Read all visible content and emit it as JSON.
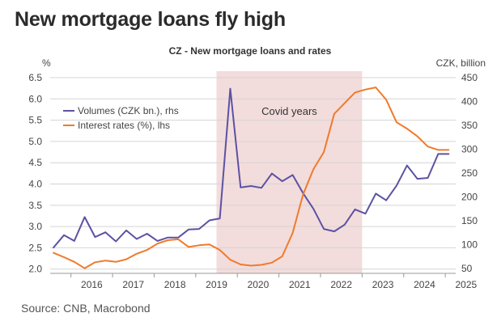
{
  "headline": "New mortgage loans fly high",
  "source": "Source: CNB, Macrobond",
  "chart_data": {
    "type": "line",
    "title": "CZ - New mortgage loans and rates",
    "left_unit": "%",
    "right_unit": "CZK, billion",
    "y_left_lim": [
      1.9,
      6.5
    ],
    "y_left_ticks": [
      "2.0",
      "2.5",
      "3.0",
      "3.5",
      "4.0",
      "4.5",
      "5.0",
      "5.5",
      "6.0",
      "6.5"
    ],
    "y_right_lim": [
      40,
      450
    ],
    "y_right_ticks": [
      "50",
      "100",
      "150",
      "200",
      "250",
      "300",
      "350",
      "400",
      "450"
    ],
    "x_lim": [
      2015.5,
      2025.25
    ],
    "x_ticks": [
      "2016",
      "2017",
      "2018",
      "2019",
      "2020",
      "2021",
      "2022",
      "2023",
      "2024",
      "2025"
    ],
    "grid": "horizontal",
    "legend_position": "top-left",
    "shaded_region": {
      "label": "Covid years",
      "from": 2019.5,
      "to": 2023.0,
      "color": "#f3dcdc"
    },
    "series": [
      {
        "name": "Volumes (CZK bn.), rhs",
        "axis": "right",
        "color": "#5b52a3",
        "x": [
          2015.58,
          2015.83,
          2016.08,
          2016.33,
          2016.58,
          2016.83,
          2017.08,
          2017.33,
          2017.58,
          2017.83,
          2018.08,
          2018.33,
          2018.58,
          2018.83,
          2019.08,
          2019.33,
          2019.58,
          2019.83,
          2020.08,
          2020.33,
          2020.58,
          2020.83,
          2021.08,
          2021.33,
          2021.58,
          2021.83,
          2022.08,
          2022.33,
          2022.58,
          2022.83,
          2023.08,
          2023.33,
          2023.58,
          2023.83,
          2024.08,
          2024.33,
          2024.58,
          2024.83,
          2025.08
        ],
        "values": [
          94,
          120,
          108,
          158,
          116,
          126,
          107,
          130,
          112,
          123,
          108,
          115,
          115,
          132,
          133,
          151,
          155,
          427,
          220,
          223,
          219,
          249,
          233,
          246,
          208,
          175,
          133,
          128,
          142,
          174,
          165,
          207,
          193,
          224,
          266,
          238,
          240,
          290,
          290
        ],
        "values_note": ""
      },
      {
        "name": "Interest rates (%), lhs",
        "axis": "left",
        "color": "#f07a2a",
        "x": [
          2015.58,
          2015.83,
          2016.08,
          2016.33,
          2016.58,
          2016.83,
          2017.08,
          2017.33,
          2017.58,
          2017.83,
          2018.08,
          2018.33,
          2018.58,
          2018.83,
          2019.08,
          2019.33,
          2019.58,
          2019.83,
          2020.08,
          2020.33,
          2020.58,
          2020.83,
          2021.08,
          2021.33,
          2021.58,
          2021.83,
          2022.08,
          2022.33,
          2022.58,
          2022.83,
          2023.08,
          2023.33,
          2023.58,
          2023.83,
          2024.08,
          2024.33,
          2024.58,
          2024.83,
          2025.08
        ],
        "values": [
          2.38,
          2.28,
          2.17,
          2.02,
          2.16,
          2.2,
          2.17,
          2.23,
          2.36,
          2.45,
          2.6,
          2.68,
          2.7,
          2.52,
          2.56,
          2.58,
          2.45,
          2.22,
          2.11,
          2.08,
          2.1,
          2.15,
          2.3,
          2.85,
          3.75,
          4.35,
          4.75,
          5.65,
          5.9,
          6.15,
          6.22,
          6.27,
          5.98,
          5.45,
          5.3,
          5.12,
          4.88,
          4.8,
          4.8
        ]
      }
    ]
  }
}
